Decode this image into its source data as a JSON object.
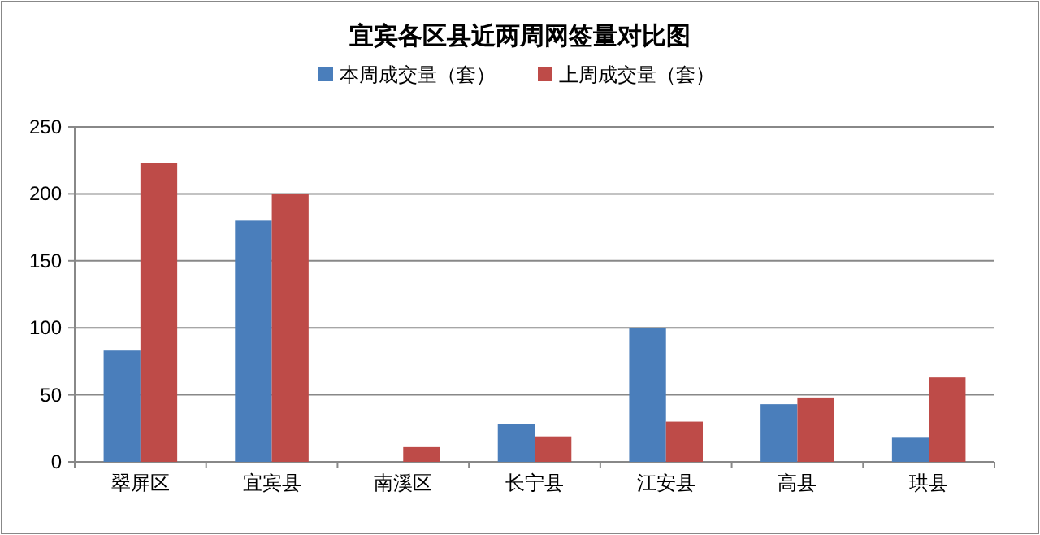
{
  "chart_data": {
    "type": "bar",
    "title": "宜宾各区县近两周网签量对比图",
    "categories": [
      "翠屏区",
      "宜宾县",
      "南溪区",
      "长宁县",
      "江安县",
      "高县",
      "珙县"
    ],
    "series": [
      {
        "name": "本周成交量（套）",
        "color": "#4a7ebb",
        "values": [
          83,
          180,
          0,
          28,
          100,
          43,
          18
        ]
      },
      {
        "name": "上周成交量（套）",
        "color": "#be4b48",
        "values": [
          223,
          200,
          11,
          19,
          30,
          48,
          63
        ]
      }
    ],
    "ylim": [
      0,
      250
    ],
    "yticks": [
      0,
      50,
      100,
      150,
      200,
      250
    ],
    "grid": "y",
    "legend": "top"
  }
}
